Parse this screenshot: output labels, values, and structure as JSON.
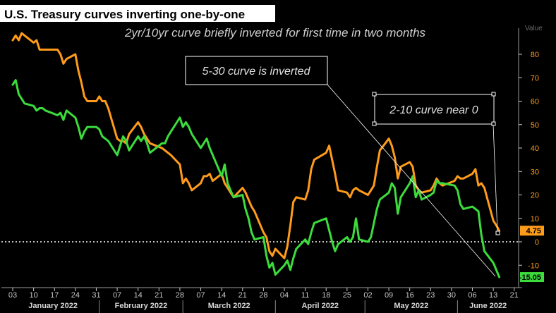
{
  "header": {
    "title": "U.S. Treasury curves inverting one-by-one",
    "subtitle": "2yr/10yr curve briefly inverted for first time in two months",
    "axis_label": "Value"
  },
  "annotations": [
    {
      "text": "5-30 curve is inverted"
    },
    {
      "text": "2-10 curve near 0"
    }
  ],
  "colors": {
    "orange": "#ff9b1a",
    "green": "#3cdc3c",
    "axis": "#c8c8c8",
    "title_bg": "#ffffff",
    "title_fg": "#000000"
  },
  "chart_data": {
    "type": "line",
    "y_range": [
      -20,
      90
    ],
    "y_ticks": [
      80,
      70,
      60,
      50,
      40,
      30,
      20,
      10,
      0,
      -10
    ],
    "x_start": "2022-01-03",
    "x_end": "2022-06-21",
    "x_ticks": [
      "03",
      "10",
      "17",
      "24",
      "31",
      "07",
      "14",
      "21",
      "28",
      "07",
      "14",
      "21",
      "28",
      "04",
      "11",
      "18",
      "25",
      "02",
      "09",
      "16",
      "23",
      "30",
      "06",
      "13",
      "21"
    ],
    "months": [
      "January 2022",
      "February 2022",
      "March 2022",
      "April 2022",
      "May 2022",
      "June 2022"
    ],
    "zero_line": {
      "value": 0,
      "style": "dotted"
    },
    "last_values": [
      {
        "series": "orange",
        "label": "4.75"
      },
      {
        "series": "green",
        "label": "-15.05"
      }
    ],
    "series": [
      {
        "color": "orange",
        "points": [
          [
            "2022-01-03",
            86
          ],
          [
            "2022-01-04",
            88
          ],
          [
            "2022-01-05",
            86
          ],
          [
            "2022-01-06",
            89
          ],
          [
            "2022-01-07",
            88
          ],
          [
            "2022-01-10",
            85
          ],
          [
            "2022-01-11",
            86
          ],
          [
            "2022-01-12",
            82
          ],
          [
            "2022-01-13",
            82
          ],
          [
            "2022-01-14",
            82
          ],
          [
            "2022-01-18",
            82
          ],
          [
            "2022-01-19",
            80
          ],
          [
            "2022-01-20",
            76
          ],
          [
            "2022-01-21",
            78
          ],
          [
            "2022-01-24",
            80
          ],
          [
            "2022-01-25",
            73
          ],
          [
            "2022-01-26",
            68
          ],
          [
            "2022-01-27",
            62
          ],
          [
            "2022-01-28",
            60
          ],
          [
            "2022-01-31",
            60
          ],
          [
            "2022-02-01",
            62
          ],
          [
            "2022-02-02",
            60
          ],
          [
            "2022-02-03",
            60
          ],
          [
            "2022-02-04",
            57
          ],
          [
            "2022-02-07",
            44
          ],
          [
            "2022-02-08",
            43
          ],
          [
            "2022-02-09",
            43
          ],
          [
            "2022-02-10",
            42
          ],
          [
            "2022-02-11",
            46
          ],
          [
            "2022-02-14",
            51
          ],
          [
            "2022-02-15",
            49
          ],
          [
            "2022-02-16",
            46
          ],
          [
            "2022-02-17",
            44
          ],
          [
            "2022-02-18",
            42
          ],
          [
            "2022-02-22",
            40
          ],
          [
            "2022-02-23",
            39
          ],
          [
            "2022-02-24",
            38
          ],
          [
            "2022-02-25",
            37
          ],
          [
            "2022-02-28",
            33
          ],
          [
            "2022-03-01",
            25
          ],
          [
            "2022-03-02",
            27
          ],
          [
            "2022-03-03",
            25
          ],
          [
            "2022-03-04",
            22
          ],
          [
            "2022-03-07",
            25
          ],
          [
            "2022-03-08",
            28
          ],
          [
            "2022-03-09",
            28
          ],
          [
            "2022-03-10",
            29
          ],
          [
            "2022-03-11",
            26
          ],
          [
            "2022-03-14",
            29
          ],
          [
            "2022-03-15",
            25
          ],
          [
            "2022-03-16",
            23
          ],
          [
            "2022-03-17",
            21
          ],
          [
            "2022-03-18",
            19
          ],
          [
            "2022-03-21",
            23
          ],
          [
            "2022-03-22",
            21
          ],
          [
            "2022-03-23",
            18
          ],
          [
            "2022-03-24",
            15
          ],
          [
            "2022-03-25",
            13
          ],
          [
            "2022-03-28",
            4
          ],
          [
            "2022-03-29",
            2
          ],
          [
            "2022-03-30",
            -4
          ],
          [
            "2022-03-31",
            -6
          ],
          [
            "2022-04-01",
            -3
          ],
          [
            "2022-04-04",
            -7
          ],
          [
            "2022-04-05",
            -2
          ],
          [
            "2022-04-06",
            7
          ],
          [
            "2022-04-07",
            17
          ],
          [
            "2022-04-08",
            19
          ],
          [
            "2022-04-11",
            18
          ],
          [
            "2022-04-12",
            22
          ],
          [
            "2022-04-13",
            31
          ],
          [
            "2022-04-14",
            35
          ],
          [
            "2022-04-18",
            38
          ],
          [
            "2022-04-19",
            41
          ],
          [
            "2022-04-20",
            35
          ],
          [
            "2022-04-21",
            29
          ],
          [
            "2022-04-22",
            22
          ],
          [
            "2022-04-25",
            21
          ],
          [
            "2022-04-26",
            19
          ],
          [
            "2022-04-27",
            22
          ],
          [
            "2022-04-28",
            23
          ],
          [
            "2022-04-29",
            22
          ],
          [
            "2022-05-02",
            20
          ],
          [
            "2022-05-03",
            22
          ],
          [
            "2022-05-04",
            24
          ],
          [
            "2022-05-05",
            32
          ],
          [
            "2022-05-06",
            39
          ],
          [
            "2022-05-09",
            44
          ],
          [
            "2022-05-10",
            41
          ],
          [
            "2022-05-11",
            36
          ],
          [
            "2022-05-12",
            27
          ],
          [
            "2022-05-13",
            32
          ],
          [
            "2022-05-16",
            34
          ],
          [
            "2022-05-17",
            32
          ],
          [
            "2022-05-18",
            24
          ],
          [
            "2022-05-19",
            22
          ],
          [
            "2022-05-20",
            21
          ],
          [
            "2022-05-23",
            22
          ],
          [
            "2022-05-24",
            24
          ],
          [
            "2022-05-25",
            27
          ],
          [
            "2022-05-26",
            25
          ],
          [
            "2022-05-27",
            24
          ],
          [
            "2022-05-31",
            26
          ],
          [
            "2022-06-01",
            28
          ],
          [
            "2022-06-02",
            27
          ],
          [
            "2022-06-03",
            27
          ],
          [
            "2022-06-06",
            29
          ],
          [
            "2022-06-07",
            31
          ],
          [
            "2022-06-08",
            24
          ],
          [
            "2022-06-09",
            25
          ],
          [
            "2022-06-10",
            23
          ],
          [
            "2022-06-13",
            9
          ],
          [
            "2022-06-14",
            7
          ],
          [
            "2022-06-15",
            4.75
          ]
        ]
      },
      {
        "color": "green",
        "points": [
          [
            "2022-01-03",
            67
          ],
          [
            "2022-01-04",
            69
          ],
          [
            "2022-01-05",
            63
          ],
          [
            "2022-01-06",
            61
          ],
          [
            "2022-01-07",
            59
          ],
          [
            "2022-01-10",
            58
          ],
          [
            "2022-01-11",
            56
          ],
          [
            "2022-01-12",
            57
          ],
          [
            "2022-01-13",
            57
          ],
          [
            "2022-01-14",
            56
          ],
          [
            "2022-01-18",
            54
          ],
          [
            "2022-01-19",
            55
          ],
          [
            "2022-01-20",
            52
          ],
          [
            "2022-01-21",
            56
          ],
          [
            "2022-01-24",
            53
          ],
          [
            "2022-01-25",
            49
          ],
          [
            "2022-01-26",
            44
          ],
          [
            "2022-01-27",
            47
          ],
          [
            "2022-01-28",
            49
          ],
          [
            "2022-01-31",
            49
          ],
          [
            "2022-02-01",
            48
          ],
          [
            "2022-02-02",
            45
          ],
          [
            "2022-02-03",
            44
          ],
          [
            "2022-02-04",
            43
          ],
          [
            "2022-02-07",
            37
          ],
          [
            "2022-02-08",
            41
          ],
          [
            "2022-02-09",
            45
          ],
          [
            "2022-02-10",
            43
          ],
          [
            "2022-02-11",
            39
          ],
          [
            "2022-02-14",
            45
          ],
          [
            "2022-02-15",
            43
          ],
          [
            "2022-02-16",
            45
          ],
          [
            "2022-02-17",
            42
          ],
          [
            "2022-02-18",
            38
          ],
          [
            "2022-02-22",
            42
          ],
          [
            "2022-02-23",
            42
          ],
          [
            "2022-02-24",
            45
          ],
          [
            "2022-02-25",
            47
          ],
          [
            "2022-02-28",
            53
          ],
          [
            "2022-03-01",
            49
          ],
          [
            "2022-03-02",
            51
          ],
          [
            "2022-03-03",
            49
          ],
          [
            "2022-03-04",
            46
          ],
          [
            "2022-03-07",
            40
          ],
          [
            "2022-03-08",
            42
          ],
          [
            "2022-03-09",
            44
          ],
          [
            "2022-03-10",
            40
          ],
          [
            "2022-03-11",
            37
          ],
          [
            "2022-03-14",
            28
          ],
          [
            "2022-03-15",
            33
          ],
          [
            "2022-03-16",
            25
          ],
          [
            "2022-03-17",
            22
          ],
          [
            "2022-03-18",
            19
          ],
          [
            "2022-03-21",
            20
          ],
          [
            "2022-03-22",
            14
          ],
          [
            "2022-03-23",
            10
          ],
          [
            "2022-03-24",
            4
          ],
          [
            "2022-03-25",
            1
          ],
          [
            "2022-03-28",
            2
          ],
          [
            "2022-03-29",
            -6
          ],
          [
            "2022-03-30",
            -11
          ],
          [
            "2022-03-31",
            -9
          ],
          [
            "2022-04-01",
            -14
          ],
          [
            "2022-04-04",
            -10
          ],
          [
            "2022-04-05",
            -8
          ],
          [
            "2022-04-06",
            -12
          ],
          [
            "2022-04-07",
            -7
          ],
          [
            "2022-04-08",
            -3
          ],
          [
            "2022-04-11",
            1
          ],
          [
            "2022-04-12",
            -1
          ],
          [
            "2022-04-13",
            4
          ],
          [
            "2022-04-14",
            8
          ],
          [
            "2022-04-18",
            10
          ],
          [
            "2022-04-19",
            5
          ],
          [
            "2022-04-20",
            0
          ],
          [
            "2022-04-21",
            -4
          ],
          [
            "2022-04-22",
            -1
          ],
          [
            "2022-04-25",
            2
          ],
          [
            "2022-04-26",
            0
          ],
          [
            "2022-04-27",
            2
          ],
          [
            "2022-04-28",
            10
          ],
          [
            "2022-04-29",
            1
          ],
          [
            "2022-05-02",
            0
          ],
          [
            "2022-05-03",
            2
          ],
          [
            "2022-05-04",
            8
          ],
          [
            "2022-05-05",
            14
          ],
          [
            "2022-05-06",
            18
          ],
          [
            "2022-05-09",
            21
          ],
          [
            "2022-05-10",
            25
          ],
          [
            "2022-05-11",
            23
          ],
          [
            "2022-05-12",
            12
          ],
          [
            "2022-05-13",
            19
          ],
          [
            "2022-05-16",
            25
          ],
          [
            "2022-05-17",
            28
          ],
          [
            "2022-05-18",
            19
          ],
          [
            "2022-05-19",
            22
          ],
          [
            "2022-05-20",
            18
          ],
          [
            "2022-05-23",
            20
          ],
          [
            "2022-05-24",
            21
          ],
          [
            "2022-05-25",
            26
          ],
          [
            "2022-05-26",
            25
          ],
          [
            "2022-05-27",
            25
          ],
          [
            "2022-05-31",
            24
          ],
          [
            "2022-06-01",
            22
          ],
          [
            "2022-06-02",
            16
          ],
          [
            "2022-06-03",
            14
          ],
          [
            "2022-06-06",
            15
          ],
          [
            "2022-06-07",
            14
          ],
          [
            "2022-06-08",
            13
          ],
          [
            "2022-06-09",
            3
          ],
          [
            "2022-06-10",
            -4
          ],
          [
            "2022-06-13",
            -9
          ],
          [
            "2022-06-14",
            -12
          ],
          [
            "2022-06-15",
            -15.05
          ]
        ]
      }
    ]
  }
}
